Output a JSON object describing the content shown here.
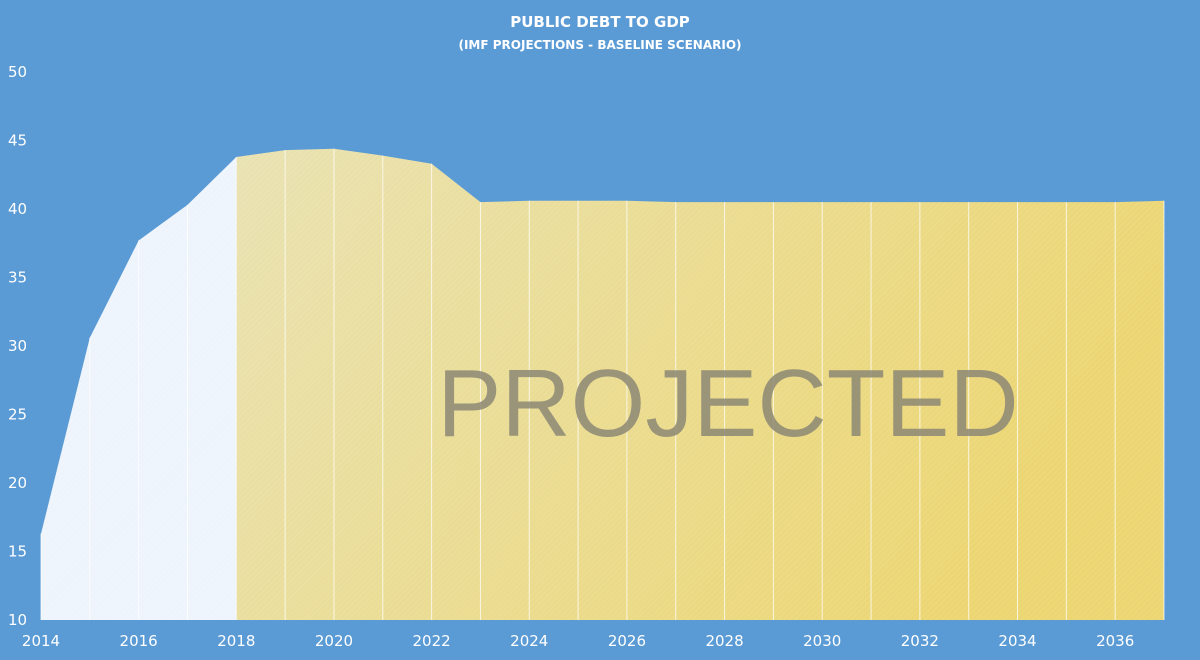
{
  "chart_data": {
    "type": "area",
    "title": "PUBLIC DEBT TO GDP",
    "subtitle": "(IMF PROJECTIONS - BASELINE SCENARIO)",
    "overlay_label": "PROJECTED",
    "xlabel": "",
    "ylabel": "",
    "ylim": [
      10,
      50
    ],
    "y_ticks": [
      10,
      15,
      20,
      25,
      30,
      35,
      40,
      45,
      50
    ],
    "xlim": [
      2014,
      2037
    ],
    "x_ticks": [
      2014,
      2016,
      2018,
      2020,
      2022,
      2024,
      2026,
      2028,
      2030,
      2032,
      2034,
      2036
    ],
    "projection_start": 2018,
    "grid": false,
    "x": [
      2014,
      2015,
      2016,
      2017,
      2018,
      2019,
      2020,
      2021,
      2022,
      2023,
      2024,
      2025,
      2026,
      2027,
      2028,
      2029,
      2030,
      2031,
      2032,
      2033,
      2034,
      2035,
      2036,
      2037
    ],
    "values": [
      16.3,
      30.6,
      37.7,
      40.3,
      43.8,
      44.3,
      44.4,
      43.9,
      43.3,
      40.5,
      40.6,
      40.6,
      40.6,
      40.5,
      40.5,
      40.5,
      40.5,
      40.5,
      40.5,
      40.5,
      40.5,
      40.5,
      40.5,
      40.6
    ],
    "colors": {
      "background": "#5b9bd5",
      "historical_fill": "#eef4fb",
      "projected_fill_start": "#e9e2b2",
      "projected_fill_end": "#ecd672",
      "text": "#ffffff",
      "overlay_text": "#8c8774"
    }
  }
}
